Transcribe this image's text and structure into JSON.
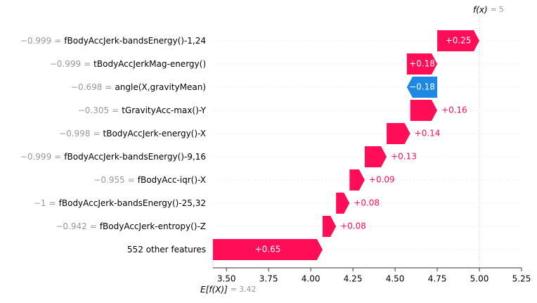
{
  "chart_data": {
    "type": "waterfall",
    "feature_values": [
      "−0.999",
      "−0.999",
      "−0.698",
      "−0.305",
      "−0.998",
      "−0.999",
      "−0.955",
      "−1",
      "−0.942",
      null
    ],
    "separator": "=",
    "categories": [
      "fBodyAccJerk-bandsEnergy()-1,24",
      "tBodyAccJerkMag-energy()",
      "angle(X,gravityMean)",
      "tGravityAcc-max()-Y",
      "tBodyAccJerk-energy()-X",
      "fBodyAccJerk-bandsEnergy()-9,16",
      "fBodyAcc-iqr()-X",
      "fBodyAccJerk-bandsEnergy()-25,32",
      "fBodyAccJerk-entropy()-Z",
      "552 other features"
    ],
    "values": [
      0.25,
      0.18,
      -0.18,
      0.16,
      0.14,
      0.13,
      0.09,
      0.08,
      0.08,
      0.65
    ],
    "value_labels": [
      "+0.25",
      "+0.18",
      "−0.18",
      "+0.16",
      "+0.14",
      "+0.13",
      "+0.09",
      "+0.08",
      "+0.08",
      "+0.65"
    ],
    "positive_color": "#ff0d57",
    "negative_color": "#1e88e5",
    "base_label": "E[f(X)]",
    "base_value": 3.42,
    "output_label": "f(x)",
    "output_value": 5,
    "xlim": [
      3.42,
      5.25
    ],
    "xticks": [
      {
        "value": 3.5,
        "label": "3.50"
      },
      3.75,
      {
        "value": 4.0,
        "label": "4.00"
      },
      4.25,
      {
        "value": 4.5,
        "label": "4.50"
      },
      4.75,
      {
        "value": 5.0,
        "label": "5.00"
      },
      5.25
    ]
  }
}
